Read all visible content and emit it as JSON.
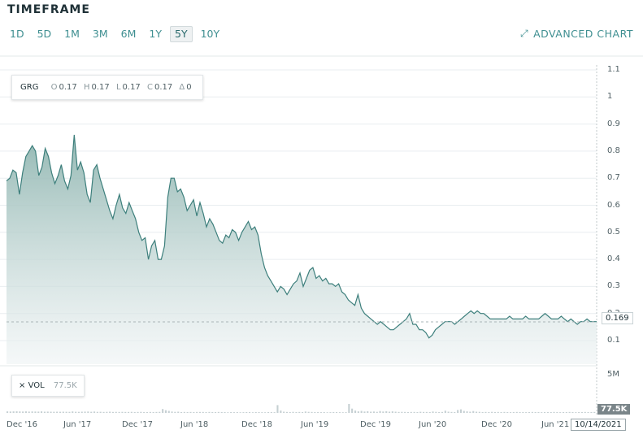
{
  "header": {
    "title": "TIMEFRAME",
    "timeframes": [
      "1D",
      "5D",
      "1M",
      "3M",
      "6M",
      "1Y",
      "5Y",
      "10Y"
    ],
    "active_timeframe": "5Y",
    "advanced_chart_label": "ADVANCED CHART"
  },
  "legend": {
    "symbol": "GRG",
    "open_label": "O",
    "open": "0.17",
    "high_label": "H",
    "high": "0.17",
    "low_label": "L",
    "low": "0.17",
    "close_label": "C",
    "close": "0.17",
    "change_label": "Δ",
    "change": "0"
  },
  "volume": {
    "close_symbol": "×",
    "label": "VOL",
    "value": "77.5K",
    "axis_max_label": "5M",
    "current_tag": "77.5K"
  },
  "price_tag": "0.169",
  "date_tag": "10/14/2021",
  "colors": {
    "accent": "#3f8f91",
    "line": "#3d7f7c",
    "area_top": "#8fb5b0",
    "area_bottom": "#f2f5f6",
    "volume_bar": "#c6d0d3",
    "grid": "#e9eef0"
  },
  "chart_data": {
    "type": "area",
    "y_ticks": [
      "1.1",
      "1",
      "0.9",
      "0.8",
      "0.7",
      "0.6",
      "0.5",
      "0.4",
      "0.3",
      "0.2",
      "0.1"
    ],
    "x_ticks": [
      "Dec '16",
      "Jun '17",
      "Dec '17",
      "Jun '18",
      "Dec '18",
      "Jun '19",
      "Dec '19",
      "Jun '20",
      "Dec '20",
      "Jun '21"
    ],
    "ylim": [
      0.1,
      1.1
    ],
    "series": [
      {
        "values": [
          0.69,
          0.7,
          0.73,
          0.72,
          0.64,
          0.72,
          0.78,
          0.8,
          0.82,
          0.8,
          0.71,
          0.74,
          0.81,
          0.78,
          0.72,
          0.68,
          0.71,
          0.75,
          0.69,
          0.66,
          0.71,
          0.86,
          0.73,
          0.76,
          0.72,
          0.64,
          0.61,
          0.73,
          0.75,
          0.7,
          0.66,
          0.62,
          0.58,
          0.55,
          0.6,
          0.64,
          0.59,
          0.57,
          0.61,
          0.58,
          0.55,
          0.5,
          0.47,
          0.48,
          0.4,
          0.45,
          0.47,
          0.4,
          0.4,
          0.45,
          0.63,
          0.7,
          0.7,
          0.65,
          0.66,
          0.63,
          0.58,
          0.6,
          0.62,
          0.56,
          0.61,
          0.57,
          0.52,
          0.55,
          0.53,
          0.5,
          0.47,
          0.46,
          0.49,
          0.48,
          0.51,
          0.5,
          0.47,
          0.5,
          0.52,
          0.54,
          0.51,
          0.52,
          0.49,
          0.42,
          0.37,
          0.34,
          0.32,
          0.3,
          0.28,
          0.3,
          0.29,
          0.27,
          0.29,
          0.31,
          0.32,
          0.35,
          0.3,
          0.33,
          0.36,
          0.37,
          0.33,
          0.34,
          0.32,
          0.33,
          0.31,
          0.31,
          0.3,
          0.31,
          0.28,
          0.27,
          0.25,
          0.24,
          0.23,
          0.27,
          0.22,
          0.2,
          0.19,
          0.18,
          0.17,
          0.16,
          0.17,
          0.16,
          0.15,
          0.14,
          0.14,
          0.15,
          0.16,
          0.17,
          0.18,
          0.2,
          0.16,
          0.16,
          0.14,
          0.14,
          0.13,
          0.11,
          0.12,
          0.14,
          0.15,
          0.16,
          0.17,
          0.17,
          0.17,
          0.16,
          0.17,
          0.18,
          0.19,
          0.2,
          0.21,
          0.2,
          0.21,
          0.2,
          0.2,
          0.19,
          0.18,
          0.18,
          0.18,
          0.18,
          0.18,
          0.18,
          0.19,
          0.18,
          0.18,
          0.18,
          0.18,
          0.19,
          0.18,
          0.18,
          0.18,
          0.18,
          0.19,
          0.2,
          0.19,
          0.18,
          0.18,
          0.18,
          0.19,
          0.18,
          0.17,
          0.18,
          0.17,
          0.16,
          0.17,
          0.17,
          0.18,
          0.17,
          0.17,
          0.17
        ]
      }
    ],
    "volume_values": [
      0.2,
      0.18,
      0.2,
      0.21,
      0.19,
      0.18,
      0.2,
      0.17,
      0.19,
      0.18,
      0.17,
      0.2,
      0.16,
      0.17,
      0.16,
      0.15,
      0.16,
      0.15,
      0.16,
      0.15,
      0.14,
      0.19,
      0.15,
      0.14,
      0.16,
      0.17,
      0.18,
      0.15,
      0.18,
      0.14,
      0.15,
      0.13,
      0.14,
      0.16,
      0.13,
      0.14,
      0.12,
      0.14,
      0.13,
      0.12,
      0.14,
      0.11,
      0.12,
      0.14,
      0.11,
      0.1,
      0.13,
      0.11,
      0.12,
      0.14,
      0.5,
      0.34,
      0.26,
      0.18,
      0.14,
      0.16,
      0.1,
      0.13,
      0.11,
      0.12,
      0.1,
      0.12,
      0.13,
      0.12,
      0.1,
      0.12,
      0.11,
      0.1,
      0.13,
      0.11,
      0.1,
      0.08,
      0.1,
      0.09,
      0.1,
      0.08,
      0.09,
      0.1,
      0.11,
      0.08,
      0.11,
      0.1,
      0.09,
      0.08,
      0.1,
      0.11,
      0.09,
      1.0,
      0.3,
      0.16,
      0.12,
      0.1,
      0.14,
      0.11,
      0.12,
      0.1,
      0.18,
      0.14,
      0.12,
      0.1,
      0.11,
      0.09,
      0.1,
      0.08,
      0.09,
      0.11,
      0.1,
      0.09,
      0.08,
      0.09,
      1.15,
      0.55,
      0.3,
      0.2,
      0.26,
      0.18,
      0.22,
      0.16,
      0.18,
      0.14,
      0.24,
      0.18,
      0.22,
      0.16,
      0.2,
      0.16,
      0.12,
      0.14,
      0.12,
      0.1,
      0.13,
      0.12,
      0.1,
      0.15,
      0.13,
      0.12,
      0.1,
      0.18,
      0.14,
      0.1,
      0.12,
      0.28,
      0.16,
      0.12,
      0.1,
      0.38,
      0.46,
      0.26,
      0.2,
      0.16,
      0.24,
      0.16,
      0.14,
      0.1,
      0.12,
      0.1,
      0.14,
      0.11,
      0.12,
      0.1,
      0.13,
      0.1,
      0.09,
      0.11,
      0.12,
      0.1,
      0.11,
      0.09,
      0.1,
      0.12,
      0.1,
      0.11,
      0.09,
      0.1,
      0.11,
      0.1,
      0.12,
      0.11,
      0.09,
      0.1,
      0.11,
      0.13,
      0.1,
      0.09,
      0.1,
      0.11,
      0.12,
      0.1,
      0.11,
      0.12
    ],
    "volume_ylim": [
      0,
      5
    ],
    "volume_unit": "M",
    "reference_line": 0.169,
    "grid": true
  }
}
